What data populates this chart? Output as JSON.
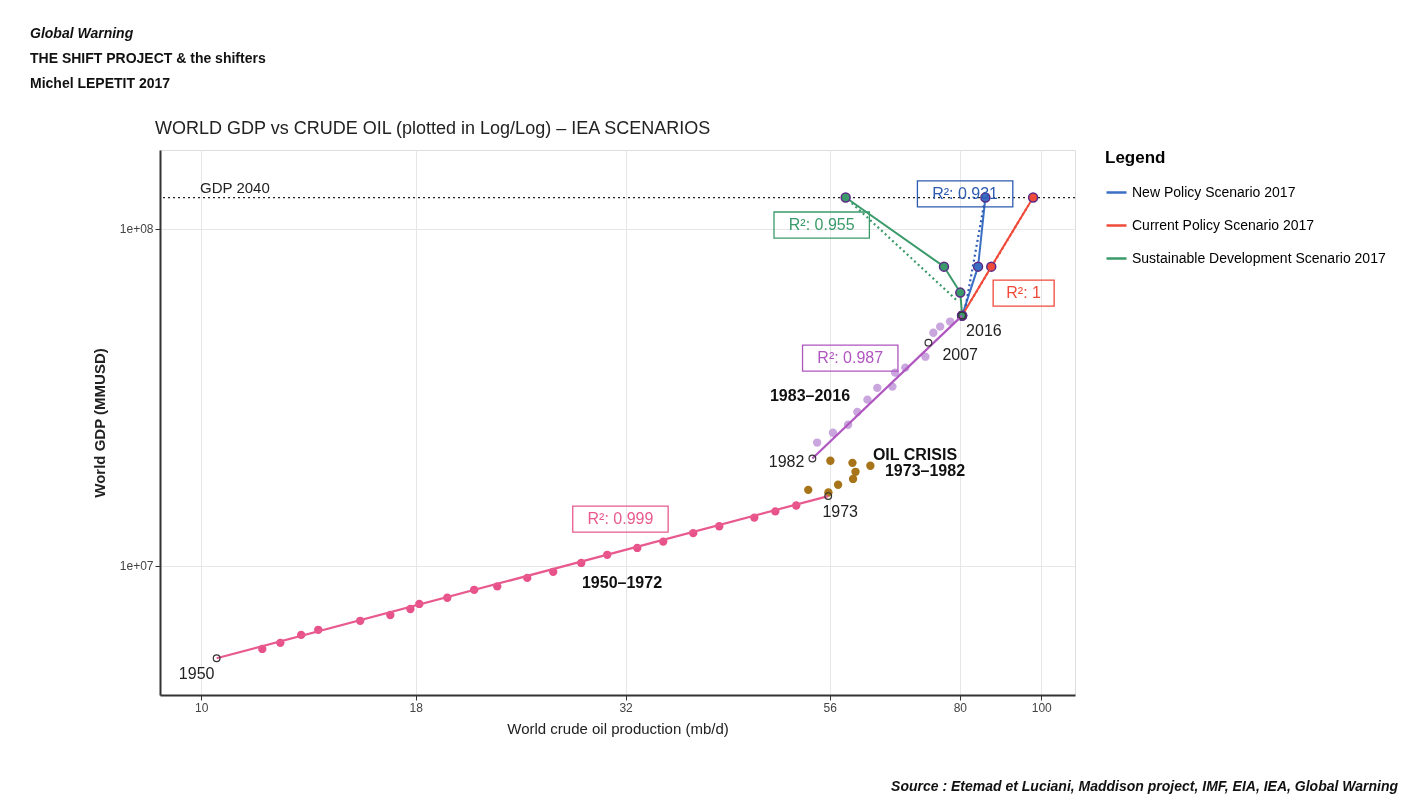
{
  "chart_data": {
    "type": "scatter",
    "title": "WORLD GDP vs CRUDE OIL (plotted in Log/Log) – IEA SCENARIOS",
    "xlabel": "World crude oil production (mb/d)",
    "ylabel": "World GDP (MMUSD)",
    "legend_title": "Legend",
    "log": "xy",
    "grid": true,
    "legend": "right",
    "xlim": [
      8.93,
      109.7
    ],
    "xticks": [
      10,
      18,
      32,
      56,
      80,
      100
    ],
    "ylim": [
      4140000,
      171000000
    ],
    "yticks": [
      {
        "value": 10000000,
        "label": "1e+07"
      },
      {
        "value": 100000000,
        "label": "1e+08"
      }
    ],
    "ref_lines": [
      {
        "axis": "y",
        "value": 123600000,
        "label": "GDP 2040",
        "line_style": "dotted",
        "color": "#222222"
      }
    ],
    "series": [
      {
        "marker": "circle",
        "color": "#e8528a",
        "x": [
          11.82,
          12.42,
          13.15,
          13.78,
          15.46,
          16.79,
          17.74,
          18.18,
          19.63,
          21.13,
          22.51,
          24.44,
          26.24,
          28.34,
          30.43,
          33.04,
          35.48,
          38.52,
          41.37,
          45.54,
          48.24,
          51.09
        ],
        "values": [
          5670000,
          5910000,
          6240000,
          6460000,
          6870000,
          7150000,
          7450000,
          7710000,
          8040000,
          8490000,
          8690000,
          9210000,
          9600000,
          10200000,
          10780000,
          11300000,
          11800000,
          12500000,
          13100000,
          13900000,
          14500000,
          15100000
        ]
      },
      {
        "marker": "circle",
        "color": "#a8741a",
        "x": [
          52.8,
          55.8,
          57.3,
          56.1,
          59.6,
          60.1,
          59.7,
          62.6
        ],
        "values": [
          16800000,
          16500000,
          17400000,
          20500000,
          20200000,
          19000000,
          18100000,
          19800000
        ]
      },
      {
        "marker": "circle",
        "color": "#c9a6dd",
        "x": [
          54.1,
          56.5,
          58.9,
          60.4,
          62.1,
          63.8,
          66.5,
          67.0,
          68.9,
          72.8,
          74.4,
          75.8,
          77.9
        ],
        "values": [
          23200000,
          24800000,
          26200000,
          28600000,
          31100000,
          33700000,
          34000000,
          37400000,
          38700000,
          41700000,
          49100000,
          51200000,
          53000000
        ]
      },
      {
        "type": "line",
        "marker": "none",
        "line_style": "solid",
        "name": "R²: 0.999",
        "color": "#e85a8e",
        "x": [
          10.43,
          55.77
        ],
        "values": [
          5320000,
          16100000
        ]
      },
      {
        "type": "line",
        "marker": "none",
        "line_style": "solid",
        "name": "R²: 0.987",
        "color": "#b056c0",
        "x": [
          53.4,
          80.5
        ],
        "values": [
          20800000,
          55200000
        ]
      },
      {
        "type": "line",
        "marker": "none",
        "line_style": "dotted",
        "name": "R²: 0.955",
        "color": "#3a9a6a",
        "x": [
          59.5,
          79.5
        ],
        "values": [
          119000000,
          61000000
        ]
      },
      {
        "type": "line",
        "marker": "none",
        "line_style": "dotted",
        "name": "R²: 0.931",
        "color": "#2d5bb0",
        "x": [
          81.3,
          85.6
        ],
        "values": [
          59000000,
          120000000
        ]
      },
      {
        "type": "line",
        "marker": "none",
        "line_style": "dotted",
        "name": "R²: 1",
        "color": "#f04a3a",
        "x": [
          82.5,
          96.5
        ],
        "values": [
          61100000,
          117000000
        ]
      },
      {
        "type": "line",
        "marker": "circle",
        "line_style": "solid",
        "name": "New Policy Scenario 2017",
        "color": "#3a6fc4",
        "x": [
          80.5,
          84.1,
          85.8
        ],
        "values": [
          55200000,
          77100000,
          123600000
        ]
      },
      {
        "type": "line",
        "marker": "circle",
        "line_style": "solid",
        "name": "Current Policy Scenario 2017",
        "color": "#f04a3a",
        "x": [
          80.5,
          87.2,
          97.8
        ],
        "values": [
          55200000,
          77100000,
          123600000
        ]
      },
      {
        "type": "line",
        "marker": "circle",
        "line_style": "solid",
        "name": "Sustainable Development Scenario 2017",
        "color": "#3a9a6a",
        "x": [
          80.5,
          80.1,
          76.6,
          58.5
        ],
        "values": [
          55200000,
          64600000,
          77100000,
          123600000
        ]
      }
    ],
    "annotations": [
      "Global Warning",
      "THE SHIFT PROJECT & the shifters",
      "Michel LEPETIT 2017",
      {
        "text": "1950",
        "x": 10.43,
        "y": 5320000
      },
      {
        "text": "1973",
        "x": 55.77,
        "y": 16100000
      },
      {
        "text": "1982",
        "x": 53.4,
        "y": 20800000
      },
      {
        "text": "2007",
        "x": 73.4,
        "y": 45900000
      },
      {
        "text": "2016",
        "x": 80.5,
        "y": 55200000
      },
      "1950–1972",
      "1983–2016",
      "OIL CRISIS",
      "1973–1982",
      "Source : Etemad et Luciani, Maddison project, IMF, EIA, IEA, Global Warning"
    ]
  }
}
